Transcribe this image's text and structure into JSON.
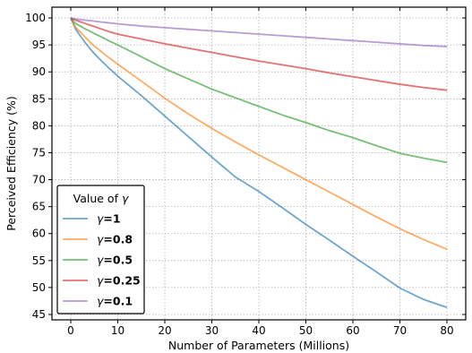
{
  "chart_data": {
    "type": "line",
    "xlabel": "Number of Parameters (Millions)",
    "ylabel": "Perceived Efficiency (%)",
    "xlim": [
      -4,
      84
    ],
    "ylim": [
      44,
      102
    ],
    "xticks": [
      0,
      10,
      20,
      30,
      40,
      50,
      60,
      70,
      80
    ],
    "yticks": [
      45,
      50,
      55,
      60,
      65,
      70,
      75,
      80,
      85,
      90,
      95,
      100
    ],
    "grid": true,
    "legend": {
      "title_prefix": "Value of ",
      "title_symbol": "γ",
      "placement": "lower-left",
      "symbol": "γ",
      "sep": "="
    },
    "x": [
      0,
      1,
      2,
      3,
      4,
      5,
      6,
      8,
      10,
      15,
      20,
      25,
      30,
      35,
      40,
      45,
      50,
      55,
      60,
      65,
      70,
      75,
      80
    ],
    "series": [
      {
        "name": "1",
        "color": "#1f77b4",
        "gamma": 1.0
      },
      {
        "name": "0.8",
        "color": "#ff7f0e",
        "gamma": 0.8
      },
      {
        "name": "0.5",
        "color": "#2ca02c",
        "gamma": 0.5
      },
      {
        "name": "0.25",
        "color": "#d62728",
        "gamma": 0.25
      },
      {
        "name": "0.1",
        "color": "#9467bd",
        "gamma": 0.1
      }
    ],
    "values_by_series": {
      "1": [
        100,
        98.0,
        96.7,
        95.5,
        94.4,
        93.4,
        92.5,
        90.8,
        89.2,
        85.6,
        81.8,
        78.0,
        74.2,
        70.5,
        67.8,
        64.8,
        61.7,
        58.8,
        55.8,
        52.9,
        49.9,
        47.8,
        46.3
      ],
      "0.8": [
        100,
        98.3,
        97.4,
        96.5,
        95.6,
        94.8,
        94.1,
        92.7,
        91.4,
        88.3,
        85.1,
        82.2,
        79.5,
        77.0,
        74.6,
        72.3,
        70.0,
        67.7,
        65.4,
        63.1,
        60.9,
        58.9,
        57.1
      ],
      "0.5": [
        100,
        99.0,
        98.5,
        98.0,
        97.6,
        97.1,
        96.7,
        95.8,
        95.0,
        92.8,
        90.6,
        88.7,
        86.8,
        85.2,
        83.6,
        82.0,
        80.6,
        79.1,
        77.8,
        76.3,
        74.9,
        74.0,
        73.2
      ],
      "0.25": [
        100,
        99.6,
        99.3,
        99.0,
        98.7,
        98.4,
        98.1,
        97.5,
        97.0,
        96.1,
        95.2,
        94.4,
        93.6,
        92.8,
        92.0,
        91.3,
        90.6,
        89.8,
        89.1,
        88.4,
        87.7,
        87.1,
        86.6
      ],
      "0.1": [
        100,
        99.8,
        99.7,
        99.6,
        99.5,
        99.4,
        99.3,
        99.1,
        98.9,
        98.5,
        98.2,
        97.9,
        97.6,
        97.3,
        97.0,
        96.7,
        96.4,
        96.1,
        95.8,
        95.5,
        95.2,
        94.9,
        94.7
      ]
    }
  }
}
